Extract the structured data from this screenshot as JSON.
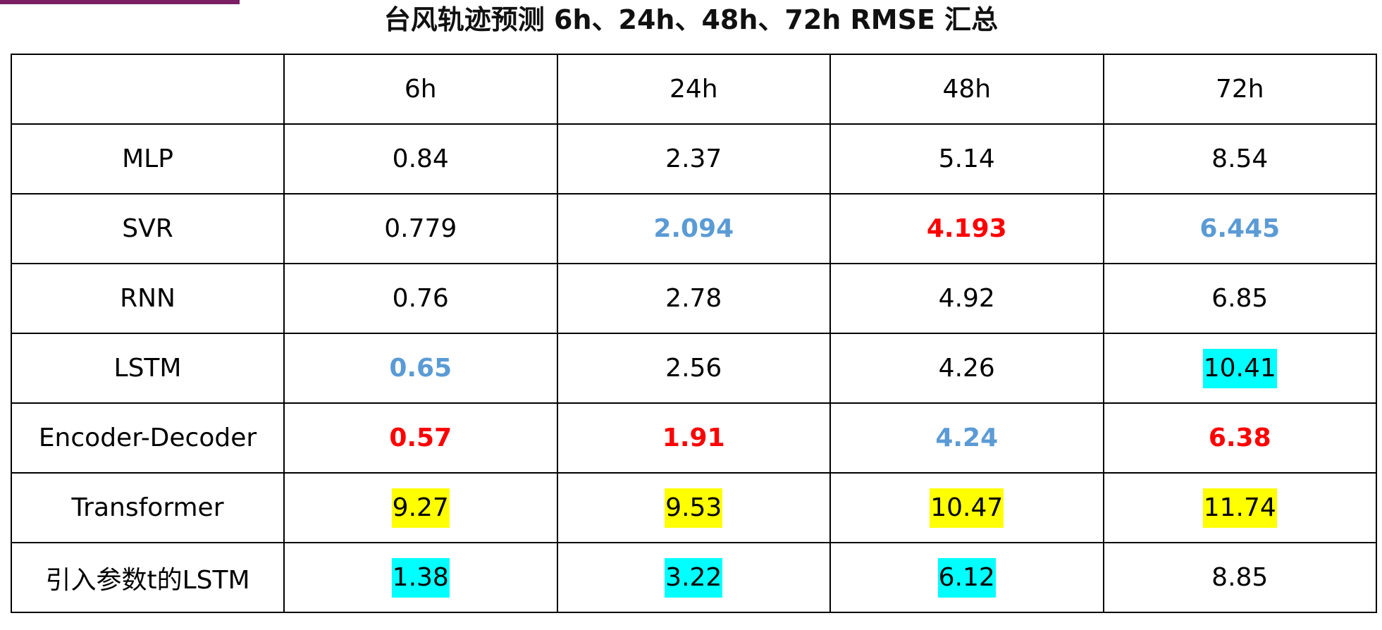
{
  "title": "台风轨迹预测 6h、24h、48h、72h RMSE 汇总",
  "colors": {
    "best": "#ff0000",
    "second": "#5b9bd5",
    "highlight_yellow": "#ffff00",
    "highlight_cyan": "#00ffff",
    "top_bar": "#7a1f63"
  },
  "table": {
    "corner": "",
    "columns": [
      "6h",
      "24h",
      "48h",
      "72h"
    ],
    "rows": [
      {
        "model": "MLP",
        "values": [
          "0.84",
          "2.37",
          "5.14",
          "8.54"
        ],
        "styles": [
          "",
          "",
          "",
          ""
        ]
      },
      {
        "model": "SVR",
        "values": [
          "0.779",
          "2.094",
          "4.193",
          "6.445"
        ],
        "styles": [
          "",
          "second",
          "best",
          "second"
        ]
      },
      {
        "model": "RNN",
        "values": [
          "0.76",
          "2.78",
          "4.92",
          "6.85"
        ],
        "styles": [
          "",
          "",
          "",
          ""
        ]
      },
      {
        "model": "LSTM",
        "values": [
          "0.65",
          "2.56",
          "4.26",
          "10.41"
        ],
        "styles": [
          "second",
          "",
          "",
          "hl-cyan"
        ]
      },
      {
        "model": "Encoder-Decoder",
        "values": [
          "0.57",
          "1.91",
          "4.24",
          "6.38"
        ],
        "styles": [
          "best",
          "best",
          "second",
          "best"
        ]
      },
      {
        "model": "Transformer",
        "values": [
          "9.27",
          "9.53",
          "10.47",
          "11.74"
        ],
        "styles": [
          "hl-yellow",
          "hl-yellow",
          "hl-yellow",
          "hl-yellow"
        ]
      },
      {
        "model": "引入参数t的LSTM",
        "values": [
          "1.38",
          "3.22",
          "6.12",
          "8.85"
        ],
        "styles": [
          "hl-cyan",
          "hl-cyan",
          "hl-cyan",
          ""
        ]
      }
    ]
  }
}
